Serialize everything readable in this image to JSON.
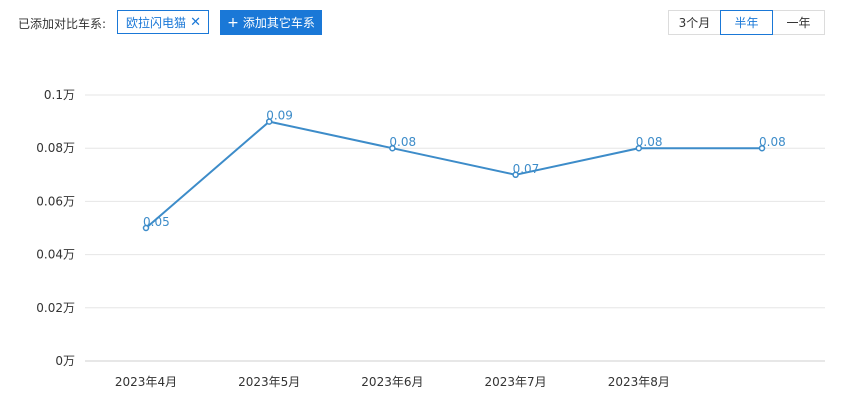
{
  "toolbar": {
    "compare_label": "已添加对比车系:",
    "tag": {
      "label": "欧拉闪电猫",
      "close_glyph": "✕"
    },
    "add_button": {
      "icon": "plus-icon",
      "label": "添加其它车系"
    },
    "ranges": [
      {
        "label": "3个月",
        "active": false
      },
      {
        "label": "半年",
        "active": true
      },
      {
        "label": "一年",
        "active": false
      }
    ]
  },
  "colors": {
    "accent": "#1a78d7",
    "line": "#3d8cc9",
    "grid": "#e6e6e6"
  },
  "chart_data": {
    "type": "line",
    "categories": [
      "2023年4月",
      "2023年5月",
      "2023年6月",
      "2023年7月",
      "2023年8月",
      ""
    ],
    "series": [
      {
        "values": [
          0.05,
          0.09,
          0.08,
          0.07,
          0.08,
          0.08
        ],
        "labels": [
          "0.05",
          "0.09",
          "0.08",
          "0.07",
          "0.08",
          "0.08"
        ]
      }
    ],
    "yticks": [
      {
        "value": 0,
        "label": "0万"
      },
      {
        "value": 0.02,
        "label": "0.02万"
      },
      {
        "value": 0.04,
        "label": "0.04万"
      },
      {
        "value": 0.06,
        "label": "0.06万"
      },
      {
        "value": 0.08,
        "label": "0.08万"
      },
      {
        "value": 0.1,
        "label": "0.1万"
      }
    ],
    "ylim": [
      0,
      0.1
    ],
    "grid": true,
    "legend": "none"
  }
}
